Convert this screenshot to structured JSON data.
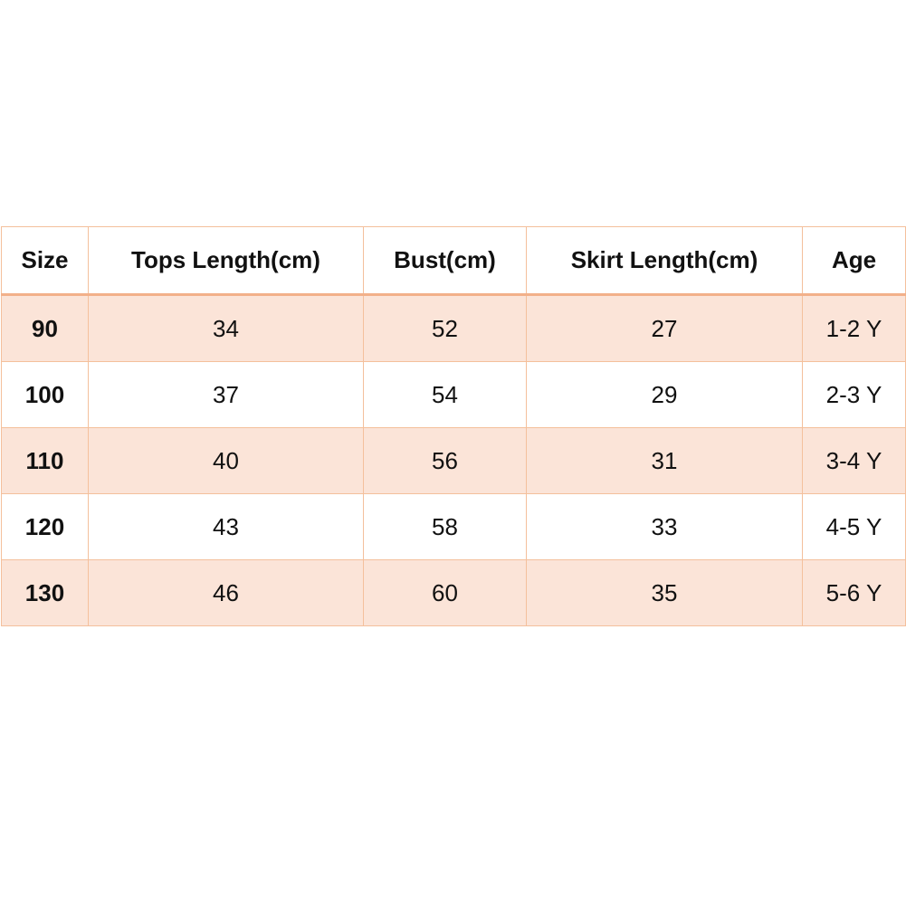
{
  "table": {
    "header": [
      "Size",
      "Tops Length(cm)",
      "Bust(cm)",
      "Skirt Length(cm)",
      "Age"
    ],
    "rows": [
      [
        90,
        34,
        52,
        27,
        "1-2 Y"
      ],
      [
        100,
        37,
        54,
        29,
        "2-3 Y"
      ],
      [
        110,
        40,
        56,
        31,
        "3-4 Y"
      ],
      [
        120,
        43,
        58,
        33,
        "4-5 Y"
      ],
      [
        130,
        46,
        60,
        35,
        "5-6 Y"
      ]
    ]
  }
}
